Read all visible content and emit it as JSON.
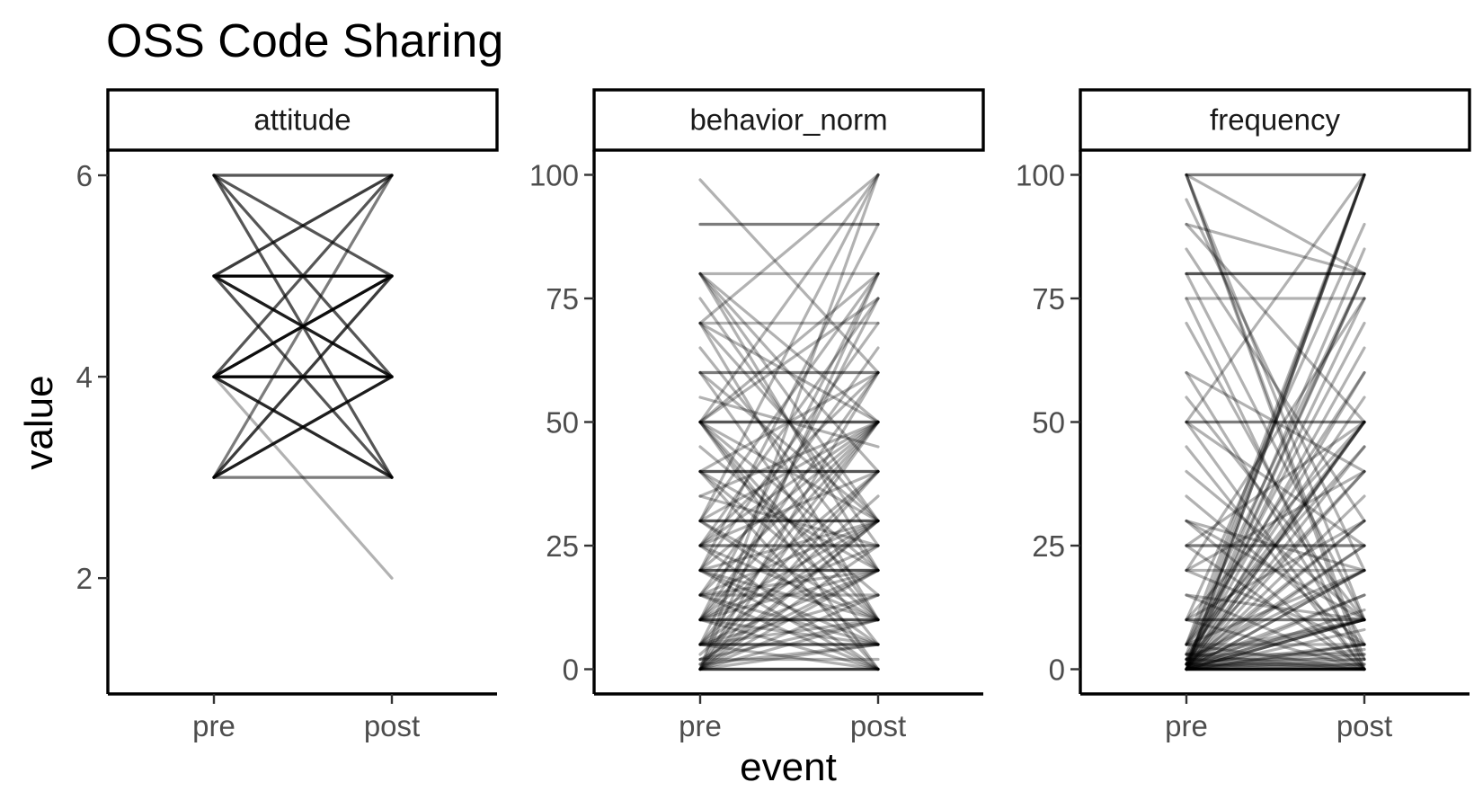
{
  "chart_data": {
    "type": "line",
    "title": "OSS Code Sharing",
    "xlabel": "event",
    "ylabel": "value",
    "x_categories": [
      "pre",
      "post"
    ],
    "line_color": "#000000",
    "line_alpha": 0.3,
    "grid": false,
    "legend": "none",
    "facets": [
      {
        "name": "attitude",
        "ylim": [
          0.85,
          6.25
        ],
        "yticks": [
          2,
          4,
          6
        ],
        "segments": [
          [
            6,
            6
          ],
          [
            6,
            6
          ],
          [
            6,
            6
          ],
          [
            6,
            5
          ],
          [
            6,
            5
          ],
          [
            6,
            5
          ],
          [
            6,
            4
          ],
          [
            6,
            4
          ],
          [
            6,
            4
          ],
          [
            6,
            3
          ],
          [
            6,
            3
          ],
          [
            6,
            3
          ],
          [
            5,
            6
          ],
          [
            5,
            6
          ],
          [
            5,
            6
          ],
          [
            5,
            6
          ],
          [
            5,
            5
          ],
          [
            5,
            5
          ],
          [
            5,
            5
          ],
          [
            5,
            5
          ],
          [
            5,
            5
          ],
          [
            5,
            5
          ],
          [
            5,
            5
          ],
          [
            5,
            5
          ],
          [
            5,
            5
          ],
          [
            5,
            5
          ],
          [
            5,
            5
          ],
          [
            5,
            5
          ],
          [
            5,
            4
          ],
          [
            5,
            4
          ],
          [
            5,
            4
          ],
          [
            5,
            4
          ],
          [
            5,
            4
          ],
          [
            5,
            4
          ],
          [
            5,
            3
          ],
          [
            5,
            3
          ],
          [
            5,
            3
          ],
          [
            4,
            6
          ],
          [
            4,
            6
          ],
          [
            4,
            6
          ],
          [
            4,
            5
          ],
          [
            4,
            5
          ],
          [
            4,
            5
          ],
          [
            4,
            5
          ],
          [
            4,
            5
          ],
          [
            4,
            5
          ],
          [
            4,
            5
          ],
          [
            4,
            5
          ],
          [
            4,
            4
          ],
          [
            4,
            4
          ],
          [
            4,
            4
          ],
          [
            4,
            4
          ],
          [
            4,
            4
          ],
          [
            4,
            4
          ],
          [
            4,
            4
          ],
          [
            4,
            4
          ],
          [
            4,
            4
          ],
          [
            4,
            4
          ],
          [
            4,
            4
          ],
          [
            4,
            4
          ],
          [
            4,
            3
          ],
          [
            4,
            3
          ],
          [
            4,
            3
          ],
          [
            4,
            3
          ],
          [
            4,
            3
          ],
          [
            4,
            2
          ],
          [
            3,
            6
          ],
          [
            3,
            6
          ],
          [
            3,
            5
          ],
          [
            3,
            5
          ],
          [
            3,
            5
          ],
          [
            3,
            5
          ],
          [
            3,
            4
          ],
          [
            3,
            4
          ],
          [
            3,
            4
          ],
          [
            3,
            4
          ],
          [
            3,
            4
          ],
          [
            3,
            4
          ],
          [
            3,
            3
          ],
          [
            3,
            3
          ]
        ]
      },
      {
        "name": "behavior_norm",
        "ylim": [
          -5,
          105
        ],
        "yticks": [
          0,
          25,
          50,
          75,
          100
        ],
        "segments": [
          [
            99,
            60
          ],
          [
            90,
            90
          ],
          [
            90,
            90
          ],
          [
            80,
            50
          ],
          [
            80,
            40
          ],
          [
            80,
            30
          ],
          [
            80,
            80
          ],
          [
            80,
            20
          ],
          [
            75,
            25
          ],
          [
            70,
            100
          ],
          [
            70,
            70
          ],
          [
            70,
            50
          ],
          [
            70,
            30
          ],
          [
            70,
            10
          ],
          [
            65,
            20
          ],
          [
            60,
            60
          ],
          [
            60,
            60
          ],
          [
            60,
            30
          ],
          [
            60,
            10
          ],
          [
            55,
            45
          ],
          [
            50,
            50
          ],
          [
            50,
            50
          ],
          [
            50,
            50
          ],
          [
            50,
            100
          ],
          [
            50,
            80
          ],
          [
            50,
            75
          ],
          [
            50,
            30
          ],
          [
            50,
            20
          ],
          [
            50,
            10
          ],
          [
            50,
            5
          ],
          [
            50,
            0
          ],
          [
            45,
            15
          ],
          [
            40,
            40
          ],
          [
            40,
            40
          ],
          [
            40,
            40
          ],
          [
            40,
            60
          ],
          [
            40,
            20
          ],
          [
            40,
            10
          ],
          [
            40,
            0
          ],
          [
            35,
            25
          ],
          [
            35,
            50
          ],
          [
            30,
            30
          ],
          [
            30,
            30
          ],
          [
            30,
            30
          ],
          [
            30,
            50
          ],
          [
            30,
            80
          ],
          [
            30,
            10
          ],
          [
            30,
            5
          ],
          [
            30,
            100
          ],
          [
            25,
            25
          ],
          [
            25,
            25
          ],
          [
            25,
            75
          ],
          [
            25,
            50
          ],
          [
            25,
            40
          ],
          [
            25,
            10
          ],
          [
            25,
            0
          ],
          [
            25,
            60
          ],
          [
            20,
            20
          ],
          [
            20,
            20
          ],
          [
            20,
            20
          ],
          [
            20,
            50
          ],
          [
            20,
            30
          ],
          [
            20,
            70
          ],
          [
            20,
            10
          ],
          [
            20,
            5
          ],
          [
            20,
            0
          ],
          [
            20,
            90
          ],
          [
            15,
            15
          ],
          [
            15,
            30
          ],
          [
            15,
            50
          ],
          [
            15,
            20
          ],
          [
            15,
            5
          ],
          [
            15,
            0
          ],
          [
            15,
            65
          ],
          [
            10,
            10
          ],
          [
            10,
            10
          ],
          [
            10,
            10
          ],
          [
            10,
            80
          ],
          [
            10,
            50
          ],
          [
            10,
            40
          ],
          [
            10,
            30
          ],
          [
            10,
            20
          ],
          [
            10,
            5
          ],
          [
            10,
            0
          ],
          [
            10,
            60
          ],
          [
            10,
            25
          ],
          [
            5,
            5
          ],
          [
            5,
            5
          ],
          [
            5,
            5
          ],
          [
            5,
            50
          ],
          [
            5,
            30
          ],
          [
            5,
            20
          ],
          [
            5,
            10
          ],
          [
            5,
            0
          ],
          [
            5,
            75
          ],
          [
            5,
            15
          ],
          [
            5,
            40
          ],
          [
            2,
            2
          ],
          [
            2,
            20
          ],
          [
            2,
            10
          ],
          [
            3,
            35
          ],
          [
            1,
            30
          ],
          [
            1,
            5
          ],
          [
            0,
            0
          ],
          [
            0,
            0
          ],
          [
            0,
            0
          ],
          [
            0,
            0
          ],
          [
            0,
            50
          ],
          [
            0,
            30
          ],
          [
            0,
            10
          ],
          [
            0,
            5
          ],
          [
            0,
            20
          ],
          [
            0,
            80
          ],
          [
            0,
            15
          ],
          [
            0,
            40
          ],
          [
            0,
            25
          ],
          [
            0,
            100
          ],
          [
            0,
            60
          ]
        ]
      },
      {
        "name": "frequency",
        "ylim": [
          -5,
          105
        ],
        "yticks": [
          0,
          25,
          50,
          75,
          100
        ],
        "segments": [
          [
            100,
            100
          ],
          [
            100,
            100
          ],
          [
            100,
            80
          ],
          [
            100,
            10
          ],
          [
            100,
            0
          ],
          [
            100,
            2
          ],
          [
            95,
            20
          ],
          [
            90,
            80
          ],
          [
            90,
            50
          ],
          [
            85,
            30
          ],
          [
            80,
            80
          ],
          [
            80,
            80
          ],
          [
            80,
            80
          ],
          [
            80,
            10
          ],
          [
            75,
            75
          ],
          [
            75,
            0
          ],
          [
            70,
            5
          ],
          [
            60,
            40
          ],
          [
            60,
            2
          ],
          [
            55,
            10
          ],
          [
            50,
            50
          ],
          [
            50,
            50
          ],
          [
            50,
            100
          ],
          [
            50,
            0
          ],
          [
            50,
            25
          ],
          [
            45,
            0
          ],
          [
            40,
            10
          ],
          [
            35,
            5
          ],
          [
            30,
            20
          ],
          [
            30,
            0
          ],
          [
            30,
            10
          ],
          [
            25,
            25
          ],
          [
            25,
            25
          ],
          [
            25,
            50
          ],
          [
            25,
            0
          ],
          [
            20,
            20
          ],
          [
            20,
            5
          ],
          [
            20,
            75
          ],
          [
            20,
            40
          ],
          [
            15,
            10
          ],
          [
            15,
            0
          ],
          [
            10,
            10
          ],
          [
            10,
            10
          ],
          [
            10,
            30
          ],
          [
            10,
            0
          ],
          [
            10,
            90
          ],
          [
            10,
            50
          ],
          [
            5,
            100
          ],
          [
            5,
            5
          ],
          [
            5,
            80
          ],
          [
            5,
            0
          ],
          [
            5,
            60
          ],
          [
            5,
            20
          ],
          [
            5,
            45
          ],
          [
            3,
            50
          ],
          [
            3,
            3
          ],
          [
            3,
            0
          ],
          [
            3,
            10
          ],
          [
            3,
            100
          ],
          [
            2,
            70
          ],
          [
            2,
            2
          ],
          [
            2,
            0
          ],
          [
            2,
            20
          ],
          [
            2,
            55
          ],
          [
            2,
            10
          ],
          [
            2,
            40
          ],
          [
            1,
            1
          ],
          [
            1,
            100
          ],
          [
            1,
            80
          ],
          [
            1,
            50
          ],
          [
            1,
            30
          ],
          [
            1,
            0
          ],
          [
            1,
            10
          ],
          [
            1,
            5
          ],
          [
            1,
            65
          ],
          [
            1,
            25
          ],
          [
            1,
            85
          ],
          [
            1,
            15
          ],
          [
            0,
            0
          ],
          [
            0,
            0
          ],
          [
            0,
            0
          ],
          [
            0,
            0
          ],
          [
            0,
            0
          ],
          [
            0,
            0
          ],
          [
            0,
            0
          ],
          [
            0,
            0
          ],
          [
            0,
            100
          ],
          [
            0,
            100
          ],
          [
            0,
            80
          ],
          [
            0,
            75
          ],
          [
            0,
            50
          ],
          [
            0,
            50
          ],
          [
            0,
            40
          ],
          [
            0,
            30
          ],
          [
            0,
            25
          ],
          [
            0,
            20
          ],
          [
            0,
            20
          ],
          [
            0,
            10
          ],
          [
            0,
            10
          ],
          [
            0,
            10
          ],
          [
            0,
            5
          ],
          [
            0,
            5
          ],
          [
            0,
            3
          ],
          [
            0,
            2
          ],
          [
            0,
            1
          ],
          [
            0,
            15
          ],
          [
            0,
            60
          ],
          [
            0,
            45
          ],
          [
            0,
            35
          ],
          [
            0,
            12
          ],
          [
            0,
            8
          ],
          [
            0,
            4
          ]
        ]
      }
    ]
  }
}
